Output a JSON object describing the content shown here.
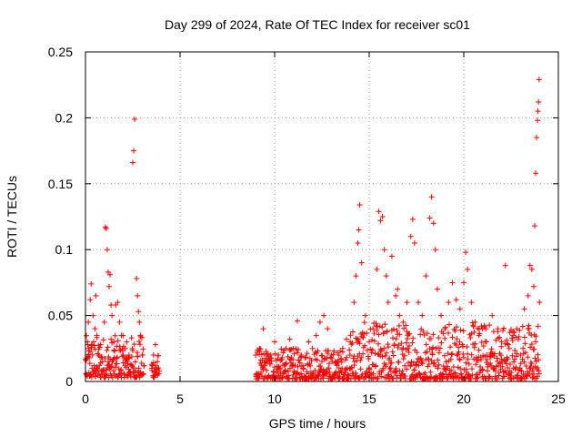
{
  "chart_data": {
    "type": "scatter",
    "title": "Day 299 of 2024, Rate Of TEC Index for receiver sc01",
    "xlabel": "GPS time / hours",
    "ylabel": "ROTI / TECUs",
    "xlim": [
      0,
      25
    ],
    "ylim": [
      0,
      0.25
    ],
    "xticks": [
      0,
      5,
      10,
      15,
      20,
      25
    ],
    "xtick_labels": [
      "0",
      "5",
      "10",
      "15",
      "20",
      "25"
    ],
    "yticks": [
      0,
      0.05,
      0.1,
      0.15,
      0.2,
      0.25
    ],
    "ytick_labels": [
      "0",
      "0.05",
      "0.1",
      "0.15",
      "0.2",
      "0.25"
    ],
    "grid": true,
    "marker": "+",
    "color": "#ff0000",
    "points": [
      [
        0.05,
        0.005
      ],
      [
        0.1,
        0.03
      ],
      [
        0.15,
        0.045
      ],
      [
        0.2,
        0.018
      ],
      [
        0.25,
        0.062
      ],
      [
        0.3,
        0.074
      ],
      [
        0.35,
        0.028
      ],
      [
        0.4,
        0.05
      ],
      [
        0.45,
        0.012
      ],
      [
        0.5,
        0.04
      ],
      [
        0.55,
        0.065
      ],
      [
        0.6,
        0.035
      ],
      [
        0.7,
        0.02
      ],
      [
        0.8,
        0.028
      ],
      [
        0.9,
        0.015
      ],
      [
        1.0,
        0.045
      ],
      [
        1.05,
        0.117
      ],
      [
        1.1,
        0.116
      ],
      [
        1.15,
        0.1
      ],
      [
        1.2,
        0.083
      ],
      [
        1.25,
        0.072
      ],
      [
        1.3,
        0.081
      ],
      [
        1.35,
        0.058
      ],
      [
        1.4,
        0.05
      ],
      [
        1.5,
        0.03
      ],
      [
        1.6,
        0.058
      ],
      [
        1.7,
        0.06
      ],
      [
        1.8,
        0.045
      ],
      [
        1.9,
        0.035
      ],
      [
        2.0,
        0.02
      ],
      [
        2.1,
        0.025
      ],
      [
        2.2,
        0.015
      ],
      [
        2.3,
        0.02
      ],
      [
        2.4,
        0.013
      ],
      [
        2.5,
        0.166
      ],
      [
        2.55,
        0.175
      ],
      [
        2.6,
        0.199
      ],
      [
        2.7,
        0.078
      ],
      [
        2.75,
        0.065
      ],
      [
        2.8,
        0.053
      ],
      [
        2.85,
        0.045
      ],
      [
        2.9,
        0.035
      ],
      [
        3.0,
        0.02
      ],
      [
        3.1,
        0.012
      ],
      [
        3.5,
        0.01
      ],
      [
        3.6,
        0.02
      ],
      [
        3.7,
        0.028
      ],
      [
        3.8,
        0.015
      ],
      [
        3.9,
        0.008
      ],
      [
        9.0,
        0.005
      ],
      [
        9.2,
        0.025
      ],
      [
        9.4,
        0.04
      ],
      [
        9.6,
        0.015
      ],
      [
        9.8,
        0.02
      ],
      [
        10.0,
        0.03
      ],
      [
        10.2,
        0.02
      ],
      [
        10.4,
        0.018
      ],
      [
        10.6,
        0.025
      ],
      [
        10.8,
        0.032
      ],
      [
        11.0,
        0.025
      ],
      [
        11.2,
        0.046
      ],
      [
        11.4,
        0.02
      ],
      [
        11.6,
        0.018
      ],
      [
        11.8,
        0.03
      ],
      [
        12.0,
        0.025
      ],
      [
        12.2,
        0.035
      ],
      [
        12.4,
        0.045
      ],
      [
        12.6,
        0.05
      ],
      [
        12.8,
        0.04
      ],
      [
        13.0,
        0.02
      ],
      [
        13.2,
        0.015
      ],
      [
        13.4,
        0.02
      ],
      [
        13.6,
        0.025
      ],
      [
        13.8,
        0.032
      ],
      [
        14.0,
        0.03
      ],
      [
        14.2,
        0.06
      ],
      [
        14.3,
        0.08
      ],
      [
        14.4,
        0.105
      ],
      [
        14.45,
        0.115
      ],
      [
        14.5,
        0.134
      ],
      [
        14.6,
        0.09
      ],
      [
        14.8,
        0.05
      ],
      [
        15.0,
        0.03
      ],
      [
        15.2,
        0.04
      ],
      [
        15.4,
        0.085
      ],
      [
        15.5,
        0.129
      ],
      [
        15.6,
        0.122
      ],
      [
        15.7,
        0.125
      ],
      [
        15.8,
        0.1
      ],
      [
        15.9,
        0.08
      ],
      [
        16.0,
        0.06
      ],
      [
        16.2,
        0.095
      ],
      [
        16.4,
        0.065
      ],
      [
        16.5,
        0.07
      ],
      [
        16.6,
        0.05
      ],
      [
        16.8,
        0.045
      ],
      [
        17.0,
        0.06
      ],
      [
        17.2,
        0.11
      ],
      [
        17.3,
        0.123
      ],
      [
        17.4,
        0.105
      ],
      [
        17.6,
        0.06
      ],
      [
        17.8,
        0.05
      ],
      [
        18.0,
        0.08
      ],
      [
        18.2,
        0.124
      ],
      [
        18.3,
        0.14
      ],
      [
        18.4,
        0.12
      ],
      [
        18.5,
        0.1
      ],
      [
        18.6,
        0.07
      ],
      [
        18.8,
        0.05
      ],
      [
        19.0,
        0.04
      ],
      [
        19.2,
        0.06
      ],
      [
        19.4,
        0.075
      ],
      [
        19.6,
        0.062
      ],
      [
        19.8,
        0.055
      ],
      [
        20.0,
        0.075
      ],
      [
        20.1,
        0.098
      ],
      [
        20.2,
        0.085
      ],
      [
        20.4,
        0.06
      ],
      [
        20.6,
        0.045
      ],
      [
        20.8,
        0.035
      ],
      [
        21.0,
        0.04
      ],
      [
        21.2,
        0.03
      ],
      [
        21.5,
        0.05
      ],
      [
        21.8,
        0.04
      ],
      [
        22.0,
        0.03
      ],
      [
        22.2,
        0.088
      ],
      [
        22.4,
        0.025
      ],
      [
        22.6,
        0.035
      ],
      [
        22.8,
        0.04
      ],
      [
        23.0,
        0.02
      ],
      [
        23.2,
        0.055
      ],
      [
        23.4,
        0.065
      ],
      [
        23.5,
        0.088
      ],
      [
        23.6,
        0.085
      ],
      [
        23.7,
        0.072
      ],
      [
        23.75,
        0.118
      ],
      [
        23.8,
        0.158
      ],
      [
        23.85,
        0.185
      ],
      [
        23.9,
        0.198
      ],
      [
        23.92,
        0.205
      ],
      [
        23.95,
        0.212
      ],
      [
        23.98,
        0.229
      ],
      [
        24.0,
        0.06
      ]
    ],
    "dense_bands": [
      {
        "x_start": 0.0,
        "x_end": 3.1,
        "y_min": 0.003,
        "y_max": 0.035
      },
      {
        "x_start": 3.5,
        "x_end": 3.9,
        "y_min": 0.003,
        "y_max": 0.022
      },
      {
        "x_start": 9.0,
        "x_end": 14.0,
        "y_min": 0.002,
        "y_max": 0.025
      },
      {
        "x_start": 14.0,
        "x_end": 24.0,
        "y_min": 0.002,
        "y_max": 0.045
      }
    ]
  }
}
